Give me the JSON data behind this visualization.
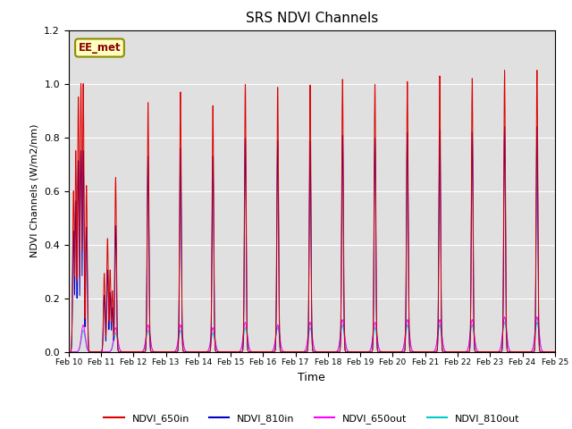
{
  "title": "SRS NDVI Channels",
  "xlabel": "Time",
  "ylabel": "NDVI Channels (W/m2/nm)",
  "annotation": "EE_met",
  "ylim": [
    0.0,
    1.2
  ],
  "bg_color": "#e0e0e0",
  "colors": {
    "ndvi_650in": "#dd0000",
    "ndvi_810in": "#0000cc",
    "ndvi_650out": "#ff00ff",
    "ndvi_810out": "#00cccc"
  },
  "legend_labels": [
    "NDVI_650in",
    "NDVI_810in",
    "NDVI_650out",
    "NDVI_810out"
  ],
  "xtick_labels": [
    "Feb 10",
    "Feb 11",
    "Feb 12",
    "Feb 13",
    "Feb 14",
    "Feb 15",
    "Feb 16",
    "Feb 17",
    "Feb 18",
    "Feb 19",
    "Feb 20",
    "Feb 21",
    "Feb 22",
    "Feb 23",
    "Feb 24",
    "Feb 25"
  ],
  "day_peaks_650in": [
    1.0,
    0.65,
    0.93,
    0.97,
    0.92,
    1.0,
    0.99,
    1.0,
    1.02,
    1.0,
    1.01,
    1.03,
    1.02,
    1.05,
    1.05
  ],
  "day_peaks_810in": [
    0.75,
    0.47,
    0.73,
    0.76,
    0.73,
    0.8,
    0.79,
    0.79,
    0.81,
    0.8,
    0.82,
    0.83,
    0.82,
    0.84,
    0.84
  ],
  "day_peaks_650out": [
    0.1,
    0.09,
    0.1,
    0.1,
    0.09,
    0.11,
    0.1,
    0.11,
    0.12,
    0.11,
    0.12,
    0.12,
    0.12,
    0.13,
    0.13
  ],
  "day_peaks_810out": [
    0.08,
    0.07,
    0.08,
    0.08,
    0.07,
    0.09,
    0.09,
    0.09,
    0.1,
    0.09,
    0.1,
    0.1,
    0.1,
    0.11,
    0.11
  ],
  "n_days": 15,
  "pts_per_day": 200
}
